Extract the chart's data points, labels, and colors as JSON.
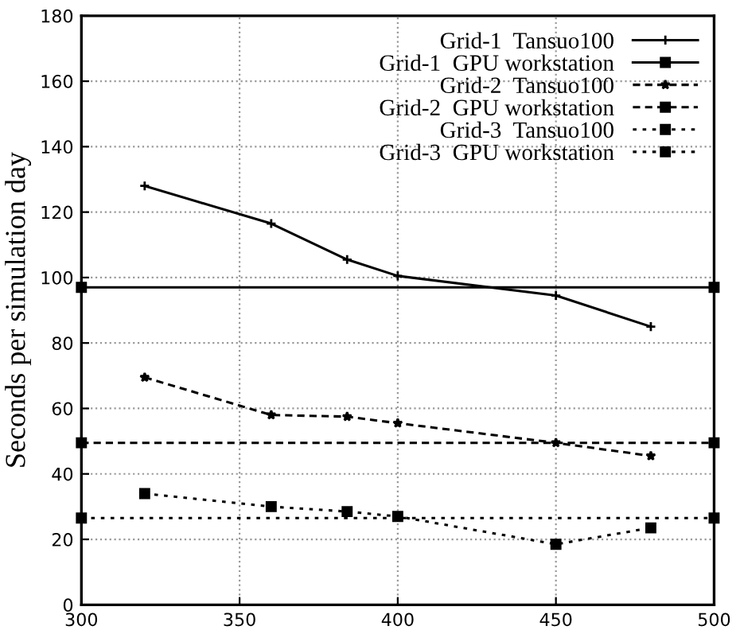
{
  "chart_data": {
    "type": "line",
    "ylabel": "Seconds per simulation day",
    "xlim": [
      300,
      500
    ],
    "ylim": [
      0,
      180
    ],
    "xticks": [
      300,
      350,
      400,
      450,
      500
    ],
    "yticks": [
      0,
      20,
      40,
      60,
      80,
      100,
      120,
      140,
      160,
      180
    ],
    "grid": true,
    "legend": "top right",
    "series": [
      {
        "name": "Grid-1  Tansuo100",
        "color": "#000000",
        "x": [
          320,
          360,
          384,
          400,
          450,
          480
        ],
        "values": [
          128,
          116.5,
          105.5,
          100.5,
          94.5,
          85
        ],
        "marker": "cross",
        "line_style": "solid"
      },
      {
        "name": "Grid-1  GPU workstation",
        "color": "#000000",
        "x": [
          300,
          500
        ],
        "values": [
          97,
          97
        ],
        "marker": "square",
        "line_style": "solid"
      },
      {
        "name": "Grid-2  Tansuo100",
        "color": "#000000",
        "x": [
          320,
          360,
          384,
          400,
          450,
          480
        ],
        "values": [
          69.5,
          58,
          57.5,
          55.5,
          49.5,
          45.5
        ],
        "marker": "star",
        "line_style": "dashed"
      },
      {
        "name": "Grid-2  GPU workstation",
        "color": "#000000",
        "x": [
          300,
          500
        ],
        "values": [
          49.5,
          49.5
        ],
        "marker": "square",
        "line_style": "dashed"
      },
      {
        "name": "Grid-3  Tansuo100",
        "color": "#000000",
        "x": [
          320,
          360,
          384,
          400,
          450,
          480
        ],
        "values": [
          34,
          30,
          28.5,
          27,
          18.5,
          23.5
        ],
        "marker": "square",
        "line_style": "dotted"
      },
      {
        "name": "Grid-3  GPU workstation",
        "color": "#000000",
        "x": [
          300,
          500
        ],
        "values": [
          26.5,
          26.5
        ],
        "marker": "square",
        "line_style": "dotted"
      }
    ]
  }
}
